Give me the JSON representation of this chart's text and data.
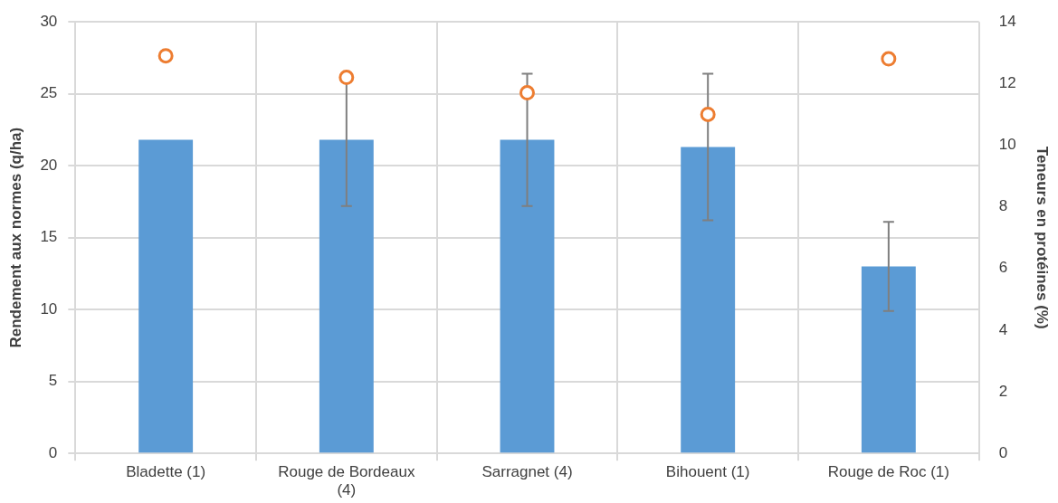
{
  "chart_data": {
    "type": "bar",
    "ylabel": "Rendement aux normes (q/ha)",
    "y2label": "Teneurs en protéines (%)",
    "categories": [
      "Bladette (1)",
      "Rouge de Bordeaux (4)",
      "Sarragnet (4)",
      "Bihouent (1)",
      "Rouge de Roc (1)"
    ],
    "series": [
      {
        "color": "#5b9bd5",
        "values": [
          21.8,
          21.8,
          21.8,
          21.3,
          13.0
        ],
        "errors": [
          null,
          4.6,
          4.6,
          5.1,
          3.1
        ]
      },
      {
        "type": "scatter",
        "axis": "y2",
        "color": "#ed7d31",
        "values": [
          12.9,
          12.2,
          11.7,
          11.0,
          12.8
        ]
      }
    ],
    "ylim": [
      0,
      30
    ],
    "yticks": [
      0,
      5,
      10,
      15,
      20,
      25,
      30
    ],
    "y2lim": [
      0,
      14
    ],
    "y2ticks": [
      0,
      2,
      4,
      6,
      8,
      10,
      12,
      14
    ],
    "grid": true,
    "legend": false,
    "marker": "circle"
  }
}
